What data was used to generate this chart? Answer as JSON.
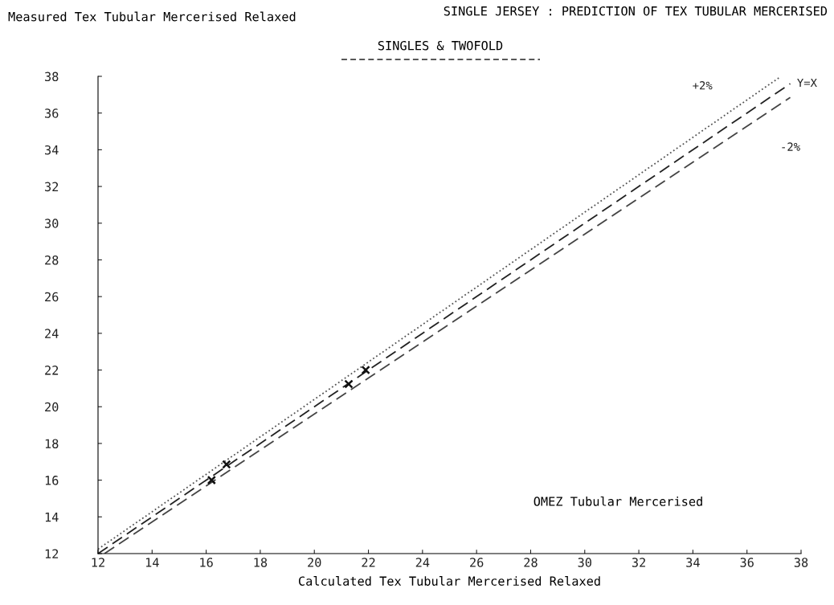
{
  "chart_data": {
    "type": "line",
    "title": "SINGLE JERSEY : PREDICTION OF TEX TUBULAR MERCERISED",
    "subtitle": "SINGLES & TWOFOLD",
    "xlabel": "Calculated Tex Tubular Mercerised Relaxed",
    "ylabel": "Measured Tex Tubular Mercerised Relaxed",
    "annotations": [
      "OMEZ Tubular Mercerised"
    ],
    "series": [
      {
        "name": "+2%",
        "color": "#555555",
        "line_style": "dotted",
        "x": [
          12,
          37.2
        ],
        "values": [
          12.24,
          37.94
        ]
      },
      {
        "name": "Y=X",
        "color": "#222222",
        "line_style": "dashed",
        "x": [
          12,
          37.6
        ],
        "values": [
          12,
          37.6
        ]
      },
      {
        "name": "-2%",
        "color": "#444444",
        "line_style": "dashed",
        "x": [
          12.24,
          37.6
        ],
        "values": [
          12.0,
          36.85
        ]
      },
      {
        "type": "scatter",
        "color": "#111111",
        "marker": "cross",
        "x": [
          16.2,
          16.75,
          21.27,
          21.9
        ],
        "values": [
          16.0,
          16.86,
          21.24,
          22.0
        ]
      }
    ],
    "xlim": [
      12,
      38
    ],
    "ylim": [
      12,
      38
    ],
    "xticks": [
      12,
      14,
      16,
      18,
      20,
      22,
      24,
      26,
      28,
      30,
      32,
      34,
      36,
      38
    ],
    "yticks": [
      12,
      14,
      16,
      18,
      20,
      22,
      24,
      26,
      28,
      30,
      32,
      34,
      36,
      38
    ],
    "grid": false,
    "legend": false
  }
}
